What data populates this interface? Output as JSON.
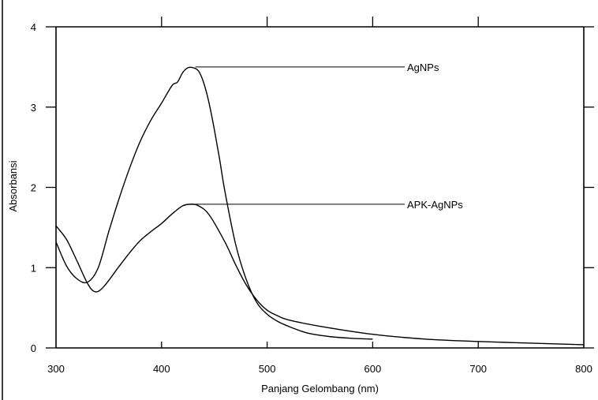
{
  "chart_data": {
    "type": "line",
    "title": "",
    "xlabel": "Panjang Gelombang (nm)",
    "ylabel": "Absorbansi",
    "xlim": [
      300,
      800
    ],
    "ylim": [
      0,
      4
    ],
    "x_ticks": [
      300,
      400,
      500,
      600,
      700,
      800
    ],
    "y_ticks": [
      0,
      1,
      2,
      3,
      4
    ],
    "grid": false,
    "legend": "inline labels with leader lines",
    "series": [
      {
        "name": "AgNPs",
        "color": "#000000",
        "label_anchor": [
          432,
          3.5
        ],
        "x": [
          300,
          310,
          320,
          330,
          340,
          350,
          360,
          370,
          380,
          390,
          400,
          410,
          415,
          420,
          425,
          430,
          435,
          440,
          445,
          450,
          455,
          460,
          470,
          480,
          490,
          500,
          510,
          520,
          530,
          540,
          560,
          580,
          600
        ],
        "y": [
          1.32,
          1.02,
          0.86,
          0.82,
          1.0,
          1.45,
          1.87,
          2.25,
          2.58,
          2.84,
          3.05,
          3.27,
          3.31,
          3.43,
          3.49,
          3.49,
          3.45,
          3.3,
          3.05,
          2.72,
          2.35,
          1.95,
          1.3,
          0.86,
          0.57,
          0.42,
          0.33,
          0.27,
          0.22,
          0.18,
          0.14,
          0.12,
          0.11
        ]
      },
      {
        "name": "APK-AgNPs",
        "color": "#000000",
        "label_anchor": [
          427,
          1.79
        ],
        "x": [
          300,
          310,
          320,
          330,
          337,
          345,
          360,
          370,
          380,
          390,
          400,
          410,
          420,
          428,
          435,
          445,
          460,
          470,
          480,
          490,
          500,
          510,
          520,
          550,
          600,
          650,
          700,
          750,
          800
        ],
        "y": [
          1.52,
          1.35,
          1.08,
          0.8,
          0.7,
          0.76,
          1.02,
          1.19,
          1.34,
          1.45,
          1.55,
          1.67,
          1.77,
          1.79,
          1.77,
          1.66,
          1.32,
          1.04,
          0.79,
          0.6,
          0.47,
          0.4,
          0.35,
          0.27,
          0.17,
          0.11,
          0.08,
          0.06,
          0.04
        ]
      }
    ]
  }
}
